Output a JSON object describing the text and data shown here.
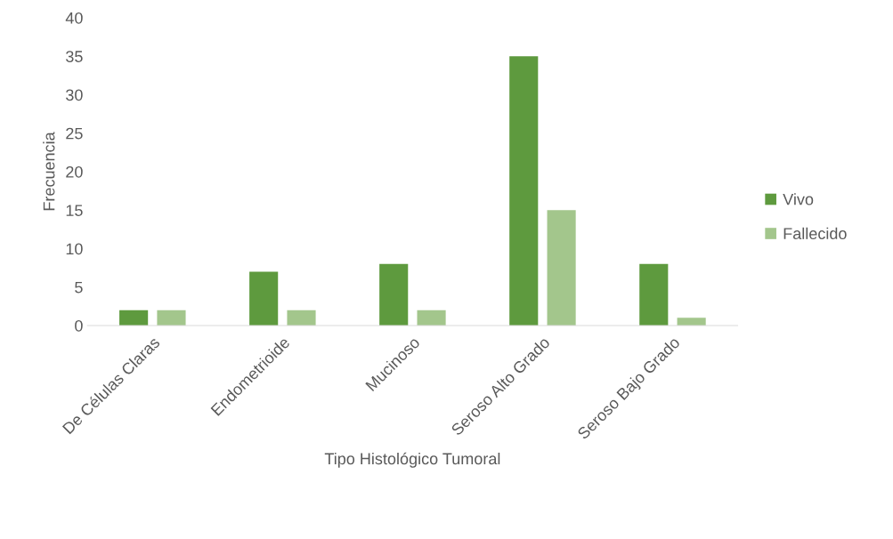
{
  "chart_data": {
    "type": "bar",
    "xlabel": "Tipo Histológico Tumoral",
    "ylabel": "Frecuencia",
    "categories": [
      "De Células Claras",
      "Endometrioide",
      "Mucinoso",
      "Seroso Alto Grado",
      "Seroso Bajo Grado"
    ],
    "series": [
      {
        "name": "Vivo",
        "color": "#5e9a3e",
        "values": [
          2,
          7,
          8,
          35,
          8
        ]
      },
      {
        "name": "Fallecido",
        "color": "#a3c68c",
        "values": [
          2,
          2,
          2,
          15,
          1
        ]
      }
    ],
    "ylim": [
      0,
      40
    ],
    "yticks": [
      0,
      5,
      10,
      15,
      20,
      25,
      30,
      35,
      40
    ],
    "grid": false,
    "legend": "right"
  }
}
